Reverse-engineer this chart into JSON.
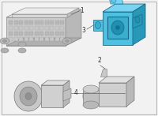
{
  "bg_color": "#f2f2f2",
  "border_color": "#bbbbbb",
  "ecm_color_top": "#e8e8e8",
  "ecm_color_front": "#d0d0d0",
  "ecm_color_side": "#b8b8b8",
  "ecm_edge": "#888888",
  "blue": "#50c0e0",
  "blue_light": "#78d4f0",
  "blue_dark": "#2898b8",
  "blue_edge": "#1a6888",
  "gray_light": "#e0e0e0",
  "gray_mid": "#c0c0c0",
  "gray_dark": "#a0a0a0",
  "gray_edge": "#787878",
  "label_color": "#333333",
  "label_fs": 5.5
}
